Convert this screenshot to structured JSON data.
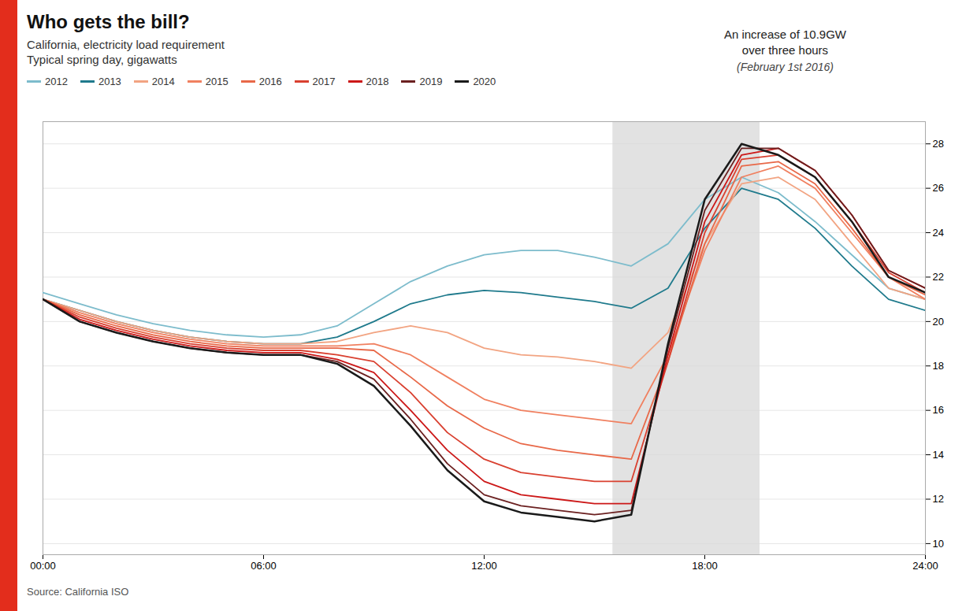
{
  "chart_data": {
    "type": "line",
    "title": "Who gets the bill?",
    "subtitle": [
      "California, electricity load requirement",
      "Typical spring day, gigawatts"
    ],
    "annotations": [
      "An increase of 10.9GW\nover three hours",
      "(February 1st 2016)"
    ],
    "source": "Source: California ISO",
    "x": [
      0,
      1,
      2,
      3,
      4,
      5,
      6,
      7,
      8,
      9,
      10,
      11,
      12,
      13,
      14,
      15,
      16,
      17,
      18,
      19,
      20,
      21,
      22,
      23,
      24
    ],
    "series": [
      {
        "name": "2012",
        "color": "#7dbccc",
        "values": [
          21.3,
          20.8,
          20.3,
          19.9,
          19.6,
          19.4,
          19.3,
          19.4,
          19.8,
          20.8,
          21.8,
          22.5,
          23.0,
          23.2,
          23.2,
          22.9,
          22.5,
          23.5,
          25.5,
          26.5,
          25.8,
          24.5,
          23.0,
          21.5,
          21.0
        ]
      },
      {
        "name": "2013",
        "color": "#1f7a8c",
        "values": [
          21.0,
          20.5,
          20.0,
          19.6,
          19.3,
          19.1,
          19.0,
          19.0,
          19.3,
          20.0,
          20.8,
          21.2,
          21.4,
          21.3,
          21.1,
          20.9,
          20.6,
          21.5,
          24.2,
          26.0,
          25.5,
          24.2,
          22.5,
          21.0,
          20.5
        ]
      },
      {
        "name": "2014",
        "color": "#f2a482",
        "values": [
          21.0,
          20.5,
          20.0,
          19.6,
          19.3,
          19.1,
          19.0,
          19.0,
          19.1,
          19.5,
          19.8,
          19.5,
          18.8,
          18.5,
          18.4,
          18.2,
          17.9,
          19.5,
          23.5,
          26.2,
          26.5,
          25.5,
          23.5,
          21.5,
          21.0
        ]
      },
      {
        "name": "2015",
        "color": "#f08060",
        "values": [
          21.0,
          20.4,
          19.9,
          19.5,
          19.2,
          19.0,
          18.9,
          18.9,
          18.9,
          19.0,
          18.5,
          17.5,
          16.5,
          16.0,
          15.8,
          15.6,
          15.4,
          18.5,
          23.2,
          26.5,
          27.0,
          26.0,
          24.0,
          22.0,
          21.0
        ]
      },
      {
        "name": "2016",
        "color": "#e86848",
        "values": [
          21.0,
          20.3,
          19.8,
          19.4,
          19.1,
          18.9,
          18.8,
          18.8,
          18.8,
          18.7,
          17.5,
          16.2,
          15.2,
          14.5,
          14.2,
          14.0,
          13.8,
          18.2,
          23.5,
          27.0,
          27.2,
          26.2,
          24.2,
          22.0,
          21.2
        ]
      },
      {
        "name": "2017",
        "color": "#d94030",
        "values": [
          21.0,
          20.2,
          19.7,
          19.3,
          19.0,
          18.8,
          18.7,
          18.7,
          18.5,
          18.2,
          16.8,
          15.0,
          13.8,
          13.2,
          13.0,
          12.8,
          12.8,
          18.2,
          24.0,
          27.3,
          27.5,
          26.5,
          24.5,
          22.2,
          21.3
        ]
      },
      {
        "name": "2018",
        "color": "#cc1818",
        "values": [
          21.0,
          20.1,
          19.6,
          19.2,
          18.9,
          18.7,
          18.6,
          18.6,
          18.3,
          17.7,
          16.0,
          14.2,
          12.8,
          12.2,
          12.0,
          11.8,
          11.8,
          18.5,
          24.5,
          27.5,
          27.8,
          26.8,
          24.8,
          22.3,
          21.5
        ]
      },
      {
        "name": "2019",
        "color": "#6b2020",
        "values": [
          21.0,
          20.0,
          19.5,
          19.1,
          18.8,
          18.6,
          18.5,
          18.5,
          18.2,
          17.4,
          15.6,
          13.6,
          12.2,
          11.7,
          11.5,
          11.3,
          11.5,
          18.8,
          25.0,
          27.8,
          27.8,
          26.8,
          24.8,
          22.3,
          21.5
        ]
      },
      {
        "name": "2020",
        "color": "#1a1a1a",
        "values": [
          21.0,
          20.0,
          19.5,
          19.1,
          18.8,
          18.6,
          18.5,
          18.5,
          18.1,
          17.1,
          15.3,
          13.3,
          11.9,
          11.4,
          11.2,
          11.0,
          11.3,
          19.0,
          25.5,
          28.0,
          27.5,
          26.5,
          24.5,
          22.0,
          21.3
        ]
      }
    ],
    "shaded_x": [
      15.5,
      19.5
    ],
    "xlim": [
      0,
      24
    ],
    "xticks": [
      {
        "value": 0,
        "label": "00:00"
      },
      {
        "value": 6,
        "label": "06:00"
      },
      {
        "value": 12,
        "label": "12:00"
      },
      {
        "value": 18,
        "label": "18:00"
      },
      {
        "value": 24,
        "label": "24:00"
      }
    ],
    "ylim": [
      9.5,
      29
    ],
    "yticks": [
      10,
      12,
      14,
      16,
      18,
      20,
      22,
      24,
      26,
      28
    ],
    "grid": true,
    "legend": "top-left"
  }
}
